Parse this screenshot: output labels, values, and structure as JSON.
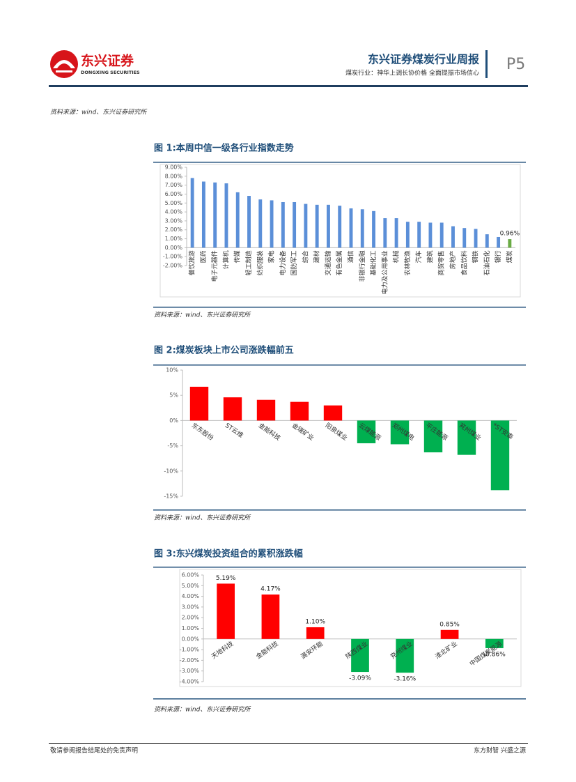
{
  "header": {
    "brand": "东兴证券",
    "brand_en": "DONGXING SECURITIES",
    "title": "东兴证券煤炭行业周报",
    "subtitle": "煤炭行业：神华上调长协价格 全面提振市场信心",
    "page": "P5"
  },
  "top_source": "资料来源：wind、东兴证券研究所",
  "chart_data": [
    {
      "type": "bar",
      "title": "图 1:本周中信一级各行业指数走势",
      "categories": [
        "餐饮旅游",
        "医药",
        "电子元器件",
        "计算机",
        "传媒",
        "轻工制造",
        "纺织服装",
        "家电",
        "电力设备",
        "国防军工",
        "综合",
        "建材",
        "交通运输",
        "有色金属",
        "通信",
        "非银行金融",
        "基础化工",
        "电力及公用事业",
        "机械",
        "农林牧渔",
        "汽车",
        "建筑",
        "商贸零售",
        "房地产",
        "食品饮料",
        "钢铁",
        "石油石化",
        "银行",
        "煤炭"
      ],
      "values": [
        7.8,
        7.4,
        7.3,
        7.2,
        6.2,
        5.8,
        5.4,
        5.3,
        5.1,
        5.1,
        4.9,
        4.8,
        4.8,
        4.7,
        4.4,
        4.3,
        4.1,
        3.3,
        3.3,
        2.9,
        2.9,
        2.8,
        2.8,
        2.4,
        2.2,
        2.1,
        1.5,
        1.2,
        0.96
      ],
      "value_labels": [
        null,
        null,
        null,
        null,
        null,
        null,
        null,
        null,
        null,
        null,
        null,
        null,
        null,
        null,
        null,
        null,
        null,
        null,
        null,
        null,
        null,
        null,
        null,
        null,
        null,
        null,
        null,
        null,
        "0.96%"
      ],
      "colors": [
        "#5b8fd8",
        "#5b8fd8",
        "#5b8fd8",
        "#5b8fd8",
        "#5b8fd8",
        "#5b8fd8",
        "#5b8fd8",
        "#5b8fd8",
        "#5b8fd8",
        "#5b8fd8",
        "#5b8fd8",
        "#5b8fd8",
        "#5b8fd8",
        "#5b8fd8",
        "#5b8fd8",
        "#5b8fd8",
        "#5b8fd8",
        "#5b8fd8",
        "#5b8fd8",
        "#5b8fd8",
        "#5b8fd8",
        "#5b8fd8",
        "#5b8fd8",
        "#5b8fd8",
        "#5b8fd8",
        "#5b8fd8",
        "#5b8fd8",
        "#5b8fd8",
        "#6aab45"
      ],
      "ylim": [
        -2,
        9
      ],
      "yticks": [
        {
          "value": -2,
          "label": "-2.00%"
        },
        {
          "value": -1,
          "label": "-1.00%"
        },
        {
          "value": 0,
          "label": "0.00%"
        },
        {
          "value": 1,
          "label": "1.00%"
        },
        {
          "value": 2,
          "label": "2.00%"
        },
        {
          "value": 3,
          "label": "3.00%"
        },
        {
          "value": 4,
          "label": "4.00%"
        },
        {
          "value": 5,
          "label": "5.00%"
        },
        {
          "value": 6,
          "label": "6.00%"
        },
        {
          "value": 7,
          "label": "7.00%"
        },
        {
          "value": 8,
          "label": "8.00%"
        },
        {
          "value": 9,
          "label": "9.00%"
        }
      ],
      "source": "资料来源：wind、东兴证券研究所"
    },
    {
      "type": "bar",
      "title": "图 2:煤炭板块上市公司涨跌幅前五",
      "categories": [
        "东东股份",
        "ST云维",
        "金能科技",
        "金瑞矿业",
        "阳泉煤业",
        "云煤能源",
        "郑州煤电",
        "平庄能源",
        "兖州煤业",
        "*ST安泰"
      ],
      "values": [
        6.7,
        4.6,
        4.1,
        3.7,
        3.0,
        -4.5,
        -4.7,
        -6.3,
        -6.8,
        -13.8
      ],
      "colors": [
        "#ff0000",
        "#ff0000",
        "#ff0000",
        "#ff0000",
        "#ff0000",
        "#00b050",
        "#00b050",
        "#00b050",
        "#00b050",
        "#00b050"
      ],
      "ylim": [
        -15,
        10
      ],
      "yticks": [
        {
          "value": -15,
          "label": "-15%"
        },
        {
          "value": -10,
          "label": "-10%"
        },
        {
          "value": -5,
          "label": "-5%"
        },
        {
          "value": 0,
          "label": "0%"
        },
        {
          "value": 5,
          "label": "5%"
        },
        {
          "value": 10,
          "label": "10%"
        }
      ],
      "source": "资料来源：wind、东兴证券研究所"
    },
    {
      "type": "bar",
      "title": "图 3:东兴煤炭投资组合的累积涨跌幅",
      "categories": [
        "天地科技",
        "金能科技",
        "潞安环能",
        "陕西煤业",
        "兖州煤业",
        "淮北矿业",
        "中国煤炭能源"
      ],
      "values": [
        5.19,
        4.17,
        1.1,
        -3.09,
        -3.16,
        0.85,
        -0.86
      ],
      "value_labels": [
        "5.19%",
        "4.17%",
        "1.10%",
        "-3.09%",
        "-3.16%",
        "0.85%",
        "-0.86%"
      ],
      "colors": [
        "#ff0000",
        "#ff0000",
        "#ff0000",
        "#00b050",
        "#00b050",
        "#ff0000",
        "#00b050"
      ],
      "ylim": [
        -4,
        6
      ],
      "yticks": [
        {
          "value": -4,
          "label": "-4.00%"
        },
        {
          "value": -3,
          "label": "-3.00%"
        },
        {
          "value": -2,
          "label": "-2.00%"
        },
        {
          "value": -1,
          "label": "-1.00%"
        },
        {
          "value": 0,
          "label": "0.00%"
        },
        {
          "value": 1,
          "label": "1.00%"
        },
        {
          "value": 2,
          "label": "2.00%"
        },
        {
          "value": 3,
          "label": "3.00%"
        },
        {
          "value": 4,
          "label": "4.00%"
        },
        {
          "value": 5,
          "label": "5.00%"
        },
        {
          "value": 6,
          "label": "6.00%"
        }
      ],
      "source": "资料来源：wind、东兴证券研究所"
    }
  ],
  "footer": {
    "left": "敬请参阅报告结尾处的免责声明",
    "right": "东方财智 兴盛之源"
  }
}
